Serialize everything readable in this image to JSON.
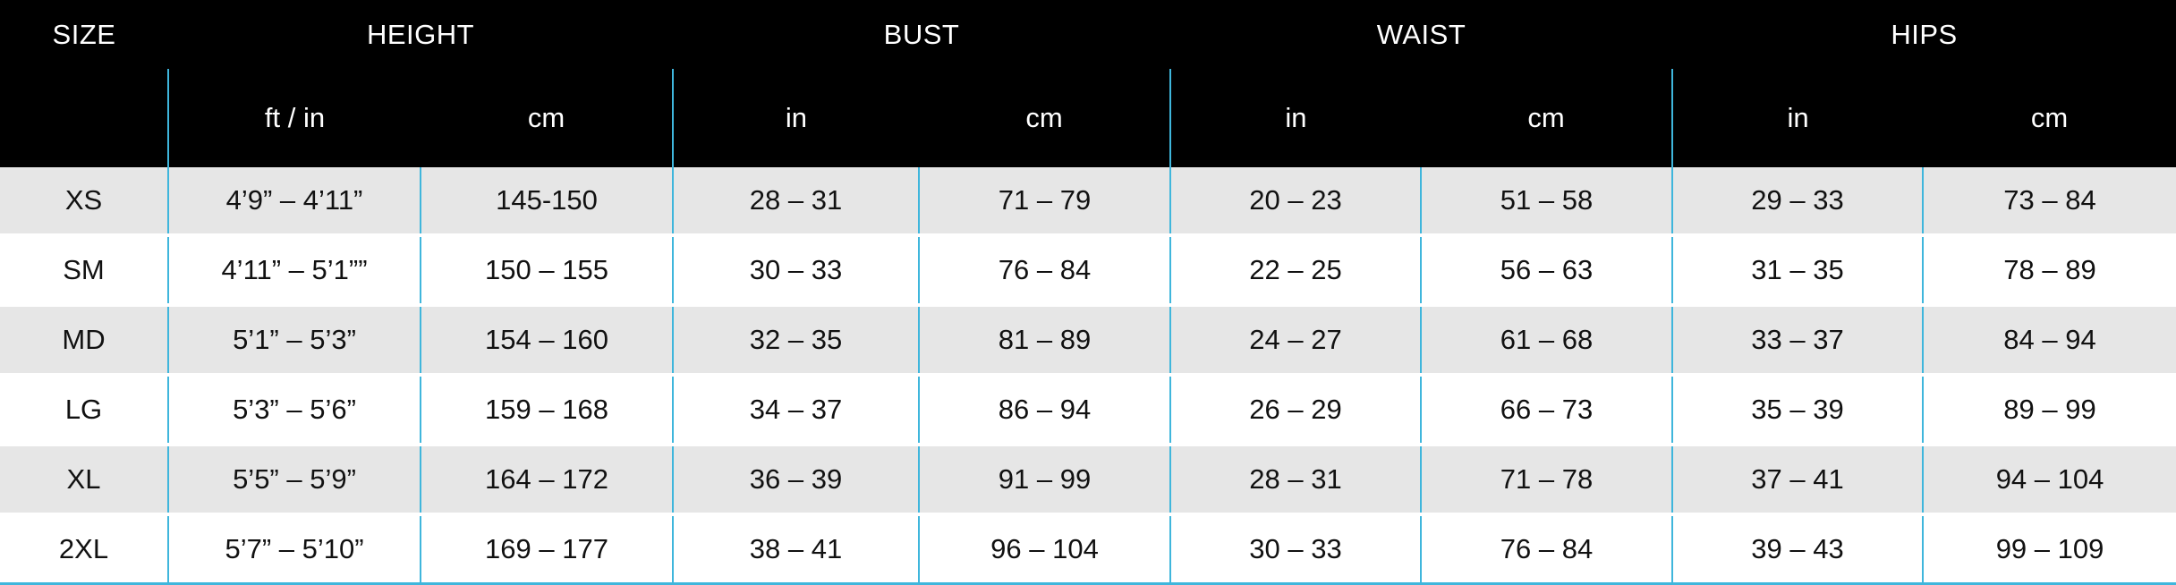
{
  "table": {
    "group_headers": {
      "size": "SIZE",
      "height": "HEIGHT",
      "bust": "BUST",
      "waist": "WAIST",
      "hips": "HIPS"
    },
    "unit_headers": {
      "height_ftin": "ft / in",
      "height_cm": "cm",
      "bust_in": "in",
      "bust_cm": "cm",
      "waist_in": "in",
      "waist_cm": "cm",
      "hips_in": "in",
      "hips_cm": "cm"
    },
    "rows": [
      {
        "size": "XS",
        "height_ftin": "4’9” – 4’11”",
        "height_cm": "145-150",
        "bust_in": "28 – 31",
        "bust_cm": "71 – 79",
        "waist_in": "20 – 23",
        "waist_cm": "51 – 58",
        "hips_in": "29 – 33",
        "hips_cm": "73 – 84"
      },
      {
        "size": "SM",
        "height_ftin": "4’11” – 5’1””",
        "height_cm": "150 – 155",
        "bust_in": "30 – 33",
        "bust_cm": "76 – 84",
        "waist_in": "22 – 25",
        "waist_cm": "56 – 63",
        "hips_in": "31 – 35",
        "hips_cm": "78 – 89"
      },
      {
        "size": "MD",
        "height_ftin": "5’1” – 5’3”",
        "height_cm": "154 – 160",
        "bust_in": "32 – 35",
        "bust_cm": "81 – 89",
        "waist_in": "24 – 27",
        "waist_cm": "61 – 68",
        "hips_in": "33 – 37",
        "hips_cm": "84 – 94"
      },
      {
        "size": "LG",
        "height_ftin": "5’3” – 5’6”",
        "height_cm": "159 – 168",
        "bust_in": "34 – 37",
        "bust_cm": "86 – 94",
        "waist_in": "26 – 29",
        "waist_cm": "66 – 73",
        "hips_in": "35 – 39",
        "hips_cm": "89 – 99"
      },
      {
        "size": "XL",
        "height_ftin": "5’5” – 5’9”",
        "height_cm": "164 – 172",
        "bust_in": "36 – 39",
        "bust_cm": "91 – 99",
        "waist_in": "28 – 31",
        "waist_cm": "71 – 78",
        "hips_in": "37 – 41",
        "hips_cm": "94 – 104"
      },
      {
        "size": "2XL",
        "height_ftin": "5’7” – 5’10”",
        "height_cm": "169 – 177",
        "bust_in": "38 – 41",
        "bust_cm": "96 – 104",
        "waist_in": "30 – 33",
        "waist_cm": "76 – 84",
        "hips_in": "39 – 43",
        "hips_cm": "99 – 109"
      }
    ]
  },
  "colors": {
    "header_bg": "#000000",
    "header_text": "#ffffff",
    "stripe_bg": "#e6e6e6",
    "divider": "#3fb6dc"
  }
}
